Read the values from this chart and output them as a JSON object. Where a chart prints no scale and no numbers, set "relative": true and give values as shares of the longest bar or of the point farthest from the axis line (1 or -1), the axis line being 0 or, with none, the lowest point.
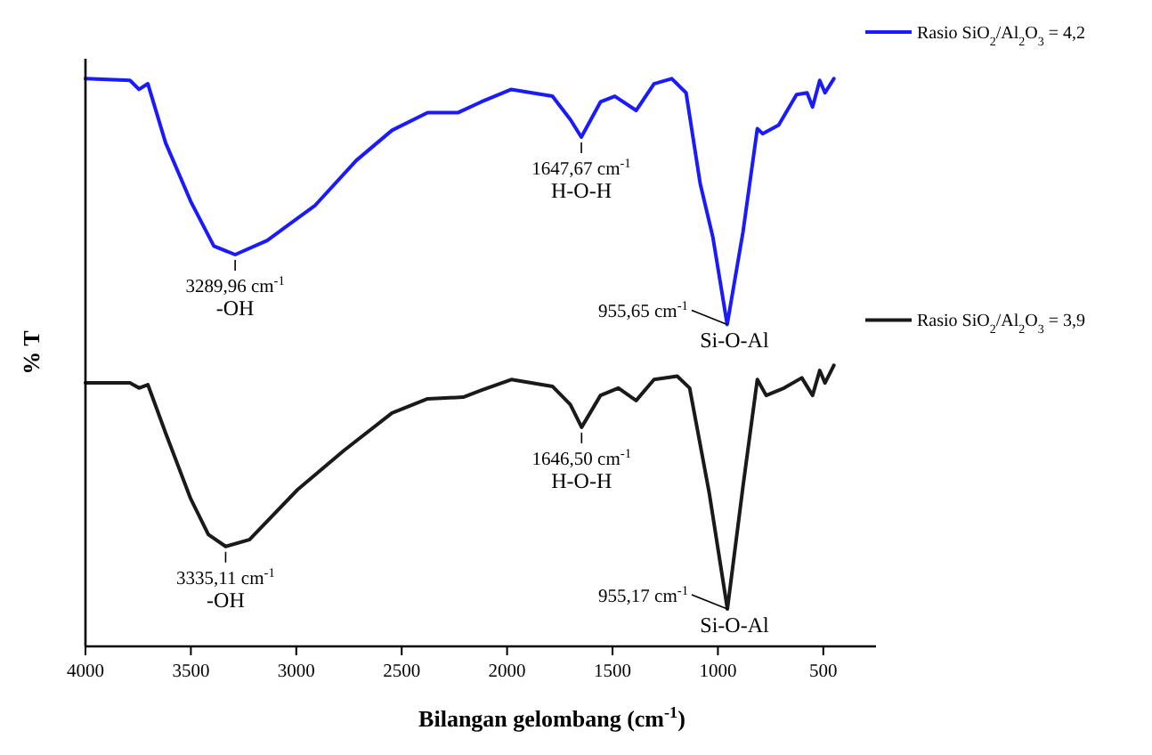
{
  "chart_data": {
    "type": "line",
    "relative": true,
    "xlabel": "Bilangan gelombang (cm$^{-1}$)",
    "ylabel": "% T",
    "xlim": [
      4000,
      250
    ],
    "xticks": [
      4000,
      3500,
      3000,
      2500,
      2000,
      1500,
      1000,
      500
    ],
    "legend": "right",
    "marker": "none",
    "line_style": "solid",
    "grid": false,
    "series": [
      {
        "name": "Rasio SiO$_{2}$/Al$_{2}$O$_{3}$ = 4,2",
        "color": "#1a1aff",
        "x": [
          4000,
          3789,
          3746,
          3704,
          3620,
          3501,
          3391,
          3290,
          3138,
          2910,
          2715,
          2546,
          2377,
          2234,
          2123,
          1980,
          1785,
          1700,
          1648,
          1557,
          1489,
          1388,
          1303,
          1219,
          1151,
          1084,
          1024,
          956,
          881,
          813,
          788,
          712,
          627,
          577,
          551,
          517,
          492,
          450
        ],
        "values": [
          1.0,
          0.997,
          0.981,
          0.991,
          0.887,
          0.784,
          0.705,
          0.69,
          0.715,
          0.777,
          0.856,
          0.909,
          0.94,
          0.94,
          0.959,
          0.981,
          0.969,
          0.928,
          0.897,
          0.959,
          0.969,
          0.944,
          0.991,
          1.0,
          0.975,
          0.815,
          0.721,
          0.567,
          0.73,
          0.912,
          0.903,
          0.918,
          0.972,
          0.975,
          0.95,
          0.997,
          0.975,
          1.0
        ]
      },
      {
        "name": "Rasio SiO$_{2}$/Al$_{2}$O$_{3}$ = 3,9",
        "color": "#1a1a1a",
        "x": [
          4000,
          3789,
          3746,
          3704,
          3620,
          3501,
          3417,
          3335,
          3222,
          2994,
          2774,
          2546,
          2377,
          2208,
          2123,
          1980,
          1785,
          1700,
          1646.5,
          1557,
          1472,
          1388,
          1303,
          1193,
          1134,
          1041,
          955,
          881,
          813,
          771,
          686,
          602,
          551,
          517,
          492,
          450
        ],
        "values": [
          0.464,
          0.464,
          0.455,
          0.461,
          0.376,
          0.26,
          0.197,
          0.176,
          0.188,
          0.276,
          0.345,
          0.411,
          0.436,
          0.439,
          0.451,
          0.47,
          0.458,
          0.426,
          0.386,
          0.442,
          0.455,
          0.433,
          0.47,
          0.476,
          0.455,
          0.27,
          0.066,
          0.282,
          0.47,
          0.442,
          0.455,
          0.473,
          0.442,
          0.486,
          0.464,
          0.495
        ]
      }
    ],
    "annotations": [
      {
        "text": "3289,96 cm$^{-1}$",
        "x": 3289.96,
        "y": 0.69
      },
      {
        "text": "-OH",
        "x": 3289.96,
        "y": 0.69
      },
      {
        "text": "1647,67 cm$^{-1}$",
        "x": 1647.67,
        "y": 0.897
      },
      {
        "text": "H-O-H",
        "x": 1647.67,
        "y": 0.897
      },
      {
        "text": "955,65 cm$^{-1}$",
        "x": 955.65,
        "y": 0.567
      },
      {
        "text": "Si-O-Al",
        "x": 955.65,
        "y": 0.567
      },
      {
        "text": "3335,11 cm$^{-1}$",
        "x": 3335.11,
        "y": 0.176
      },
      {
        "text": "-OH",
        "x": 3335.11,
        "y": 0.176
      },
      {
        "text": "1646,50 cm$^{-1}$",
        "x": 1646.5,
        "y": 0.386
      },
      {
        "text": "H-O-H",
        "x": 1646.5,
        "y": 0.386
      },
      {
        "text": "955,17 cm$^{-1}$",
        "x": 955.17,
        "y": 0.066
      },
      {
        "text": "Si-O-Al",
        "x": 955.17,
        "y": 0.066
      }
    ]
  }
}
